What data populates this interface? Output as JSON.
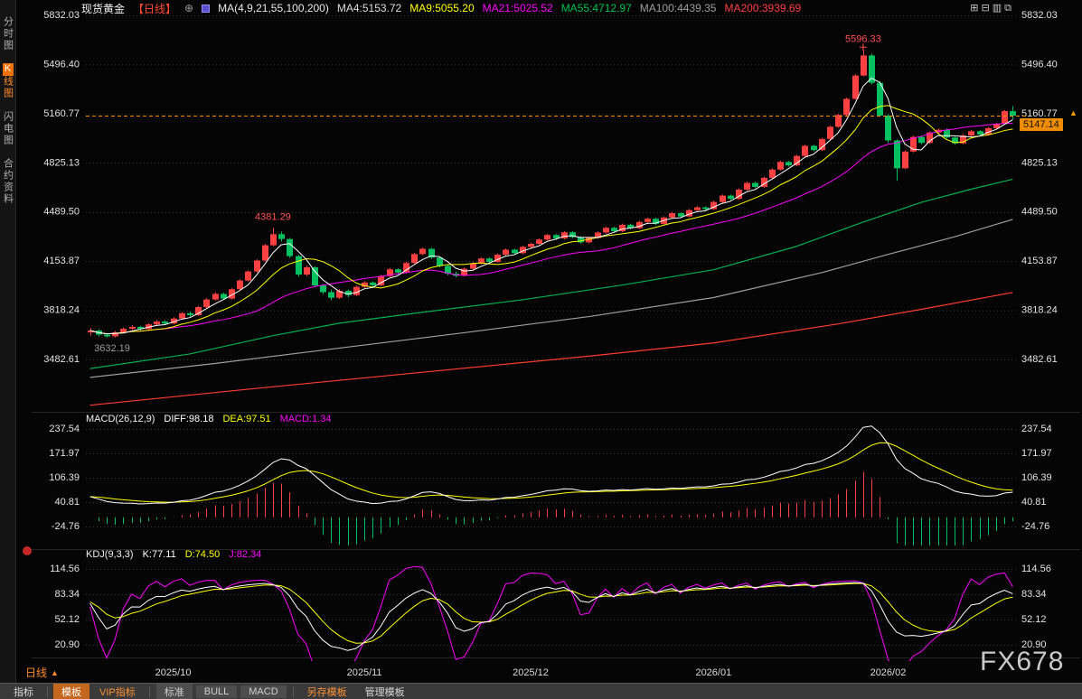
{
  "header": {
    "symbol": "现货黄金",
    "period_tag": "【日线】",
    "ma_settings": "MA(4,9,21,55,100,200)",
    "ma_values": [
      {
        "label": "MA4:5153.72",
        "color": "#dddddd"
      },
      {
        "label": "MA9:5055.20",
        "color": "#ffff00"
      },
      {
        "label": "MA21:5025.52",
        "color": "#ff00ff"
      },
      {
        "label": "MA55:4712.97",
        "color": "#00c050"
      },
      {
        "label": "MA100:4439.35",
        "color": "#9e9e9e"
      },
      {
        "label": "MA200:3939.69",
        "color": "#ff4040"
      }
    ],
    "window_icons": [
      {
        "name": "grid-layout-icon",
        "glyph": "⊞"
      },
      {
        "name": "split-horizontal-icon",
        "glyph": "⊟"
      },
      {
        "name": "rows-layout-icon",
        "glyph": "▥"
      },
      {
        "name": "overlap-windows-icon",
        "glyph": "⧉"
      }
    ]
  },
  "sidebar": {
    "items": [
      {
        "label": "分时图",
        "active": false
      },
      {
        "label": "K线图",
        "active": true
      },
      {
        "label": "闪电图",
        "active": false
      },
      {
        "label": "合约资料",
        "active": false
      }
    ]
  },
  "toolbar": {
    "items": [
      {
        "label": "指标"
      },
      {
        "label": "模板"
      },
      {
        "label": "VIP指标"
      },
      {
        "label": "标准"
      },
      {
        "label": "BULL"
      },
      {
        "label": "MACD"
      },
      {
        "label": "另存模板"
      },
      {
        "label": "管理模板"
      }
    ]
  },
  "overlays": {
    "current_price_label": "5147.14",
    "price_marker_glyph": "▲",
    "watermark": "FX678",
    "period_label": "日线",
    "period_arrow_glyph": "▲",
    "circle_plus_glyph": "⊕"
  },
  "chart_data": {
    "type": "candlestick",
    "title": "现货黄金 日线",
    "colors": {
      "up": "#ff4040",
      "down": "#00c060",
      "accent": "#ff9000"
    },
    "price_ticks": [
      "5832.03",
      "5496.40",
      "5160.77",
      "4825.13",
      "4489.50",
      "4153.87",
      "3818.24",
      "3482.61"
    ],
    "x_ticks": [
      {
        "label": "2025/10",
        "index": 10
      },
      {
        "label": "2025/11",
        "index": 33
      },
      {
        "label": "2025/12",
        "index": 53
      },
      {
        "label": "2026/01",
        "index": 75
      },
      {
        "label": "2026/02",
        "index": 96
      }
    ],
    "current_price": 5147.14,
    "annotations": [
      {
        "text": "5596.33",
        "index": 93,
        "anchor": "high",
        "color": "#ff5050",
        "marker": "cross"
      },
      {
        "text": "4381.29",
        "index": 22,
        "anchor": "high",
        "color": "#ff5050"
      },
      {
        "text": "3632.19",
        "index": 2,
        "anchor": "low",
        "color": "#9a9a9a"
      }
    ],
    "ma_computed": [
      {
        "name": "MA21",
        "window": 21,
        "color": "#ff00ff"
      },
      {
        "name": "MA9",
        "window": 9,
        "color": "#ffff00"
      },
      {
        "name": "MA4",
        "window": 4,
        "color": "#ffffff"
      }
    ],
    "ma_overlays": [
      {
        "name": "MA200",
        "color": "#ff3b30",
        "points": [
          [
            0,
            3170
          ],
          [
            20,
            3285
          ],
          [
            40,
            3395
          ],
          [
            60,
            3505
          ],
          [
            75,
            3595
          ],
          [
            90,
            3725
          ],
          [
            100,
            3825
          ],
          [
            111,
            3940
          ]
        ]
      },
      {
        "name": "MA100",
        "color": "#9e9e9e",
        "points": [
          [
            0,
            3360
          ],
          [
            15,
            3455
          ],
          [
            30,
            3560
          ],
          [
            45,
            3665
          ],
          [
            60,
            3775
          ],
          [
            75,
            3905
          ],
          [
            88,
            4075
          ],
          [
            96,
            4200
          ],
          [
            104,
            4320
          ],
          [
            111,
            4439
          ]
        ]
      },
      {
        "name": "MA55",
        "color": "#00b050",
        "points": [
          [
            0,
            3420
          ],
          [
            12,
            3520
          ],
          [
            22,
            3645
          ],
          [
            30,
            3730
          ],
          [
            40,
            3805
          ],
          [
            52,
            3890
          ],
          [
            64,
            3990
          ],
          [
            75,
            4095
          ],
          [
            85,
            4255
          ],
          [
            93,
            4420
          ],
          [
            100,
            4555
          ],
          [
            106,
            4645
          ],
          [
            111,
            4713
          ]
        ]
      }
    ],
    "macd": {
      "label": "MACD(26,12,9)",
      "diff_label": "DIFF:98.18",
      "dea_label": "DEA:97.51",
      "macd_label": "MACD:1.34",
      "ticks": [
        "237.54",
        "171.97",
        "106.39",
        "40.81",
        "-24.76"
      ],
      "colors": {
        "diff": "#ffffff",
        "dea": "#ffff00",
        "macd": "#ff00ff",
        "hist_pos": "#ff4040",
        "hist_neg": "#00c060"
      }
    },
    "kdj": {
      "label": "KDJ(9,3,3)",
      "k_label": "K:77.11",
      "d_label": "D:74.50",
      "j_label": "J:82.34",
      "ticks": [
        "114.56",
        "83.34",
        "52.12",
        "20.90"
      ],
      "colors": {
        "k": "#ffffff",
        "d": "#ffff00",
        "j": "#ff00ff"
      }
    },
    "candles": [
      [
        3668,
        3698,
        3645,
        3680
      ],
      [
        3680,
        3688,
        3640,
        3652
      ],
      [
        3652,
        3664,
        3632.19,
        3640
      ],
      [
        3640,
        3676,
        3633,
        3668
      ],
      [
        3668,
        3701,
        3660,
        3692
      ],
      [
        3692,
        3718,
        3684,
        3705
      ],
      [
        3705,
        3712,
        3678,
        3690
      ],
      [
        3690,
        3730,
        3685,
        3722
      ],
      [
        3722,
        3752,
        3714,
        3741
      ],
      [
        3741,
        3750,
        3718,
        3728
      ],
      [
        3728,
        3770,
        3722,
        3762
      ],
      [
        3762,
        3806,
        3755,
        3798
      ],
      [
        3798,
        3809,
        3774,
        3785
      ],
      [
        3785,
        3848,
        3780,
        3840
      ],
      [
        3840,
        3901,
        3834,
        3892
      ],
      [
        3892,
        3941,
        3885,
        3930
      ],
      [
        3930,
        3938,
        3889,
        3898
      ],
      [
        3898,
        3970,
        3892,
        3962
      ],
      [
        3962,
        4030,
        3955,
        4021
      ],
      [
        4021,
        4091,
        4015,
        4083
      ],
      [
        4083,
        4166,
        4076,
        4158
      ],
      [
        4158,
        4271,
        4152,
        4262
      ],
      [
        4262,
        4381.29,
        4255,
        4338
      ],
      [
        4338,
        4356,
        4288,
        4305
      ],
      [
        4305,
        4312,
        4176,
        4188
      ],
      [
        4188,
        4196,
        4048,
        4062
      ],
      [
        4062,
        4125,
        4052,
        4112
      ],
      [
        4112,
        4118,
        3975,
        3988
      ],
      [
        3988,
        3996,
        3928,
        3942
      ],
      [
        3942,
        3958,
        3886,
        3904
      ],
      [
        3904,
        3962,
        3896,
        3951
      ],
      [
        3951,
        3960,
        3908,
        3922
      ],
      [
        3922,
        3987,
        3915,
        3978
      ],
      [
        3978,
        4018,
        3970,
        4008
      ],
      [
        4008,
        4016,
        3978,
        3989
      ],
      [
        3989,
        4060,
        3982,
        4052
      ],
      [
        4052,
        4107,
        4045,
        4098
      ],
      [
        4098,
        4105,
        4062,
        4076
      ],
      [
        4076,
        4150,
        4070,
        4141
      ],
      [
        4141,
        4211,
        4135,
        4202
      ],
      [
        4202,
        4246,
        4195,
        4238
      ],
      [
        4238,
        4244,
        4168,
        4178
      ],
      [
        4178,
        4186,
        4110,
        4121
      ],
      [
        4121,
        4130,
        4058,
        4068
      ],
      [
        4068,
        4082,
        4043,
        4054
      ],
      [
        4054,
        4110,
        4048,
        4102
      ],
      [
        4102,
        4146,
        4096,
        4138
      ],
      [
        4138,
        4180,
        4131,
        4172
      ],
      [
        4172,
        4179,
        4140,
        4149
      ],
      [
        4149,
        4206,
        4143,
        4198
      ],
      [
        4198,
        4240,
        4192,
        4232
      ],
      [
        4232,
        4239,
        4199,
        4208
      ],
      [
        4208,
        4259,
        4202,
        4251
      ],
      [
        4251,
        4280,
        4244,
        4272
      ],
      [
        4272,
        4309,
        4266,
        4301
      ],
      [
        4301,
        4340,
        4295,
        4332
      ],
      [
        4332,
        4339,
        4300,
        4309
      ],
      [
        4309,
        4359,
        4303,
        4351
      ],
      [
        4351,
        4358,
        4310,
        4318
      ],
      [
        4318,
        4325,
        4273,
        4282
      ],
      [
        4282,
        4320,
        4276,
        4312
      ],
      [
        4312,
        4357,
        4306,
        4349
      ],
      [
        4349,
        4389,
        4343,
        4381
      ],
      [
        4381,
        4388,
        4349,
        4358
      ],
      [
        4358,
        4410,
        4352,
        4402
      ],
      [
        4402,
        4409,
        4371,
        4379
      ],
      [
        4379,
        4429,
        4373,
        4421
      ],
      [
        4421,
        4451,
        4415,
        4443
      ],
      [
        4443,
        4450,
        4399,
        4408
      ],
      [
        4408,
        4460,
        4402,
        4452
      ],
      [
        4452,
        4489,
        4446,
        4481
      ],
      [
        4481,
        4488,
        4450,
        4459
      ],
      [
        4459,
        4510,
        4453,
        4502
      ],
      [
        4502,
        4529,
        4496,
        4521
      ],
      [
        4521,
        4528,
        4500,
        4509
      ],
      [
        4509,
        4566,
        4503,
        4558
      ],
      [
        4558,
        4609,
        4552,
        4601
      ],
      [
        4601,
        4608,
        4570,
        4579
      ],
      [
        4579,
        4650,
        4573,
        4642
      ],
      [
        4642,
        4696,
        4636,
        4688
      ],
      [
        4688,
        4695,
        4652,
        4661
      ],
      [
        4661,
        4730,
        4655,
        4722
      ],
      [
        4722,
        4787,
        4716,
        4779
      ],
      [
        4779,
        4839,
        4773,
        4831
      ],
      [
        4831,
        4838,
        4799,
        4808
      ],
      [
        4808,
        4880,
        4802,
        4872
      ],
      [
        4872,
        4949,
        4866,
        4941
      ],
      [
        4941,
        4948,
        4903,
        4912
      ],
      [
        4912,
        4996,
        4906,
        4988
      ],
      [
        4988,
        5079,
        4982,
        5071
      ],
      [
        5071,
        5160,
        5065,
        5152
      ],
      [
        5152,
        5270,
        5146,
        5262
      ],
      [
        5262,
        5429,
        5256,
        5421
      ],
      [
        5421,
        5596.33,
        5415,
        5558
      ],
      [
        5558,
        5570,
        5360,
        5372
      ],
      [
        5372,
        5380,
        5138,
        5148
      ],
      [
        5148,
        5156,
        4962,
        4978
      ],
      [
        4978,
        4986,
        4702,
        4788
      ],
      [
        4788,
        4910,
        4782,
        4902
      ],
      [
        4902,
        5010,
        4896,
        5002
      ],
      [
        5002,
        5009,
        4952,
        4961
      ],
      [
        4961,
        5040,
        4955,
        5032
      ],
      [
        5032,
        5059,
        5026,
        5051
      ],
      [
        5051,
        5058,
        4989,
        4998
      ],
      [
        4998,
        5005,
        4949,
        4958
      ],
      [
        4958,
        5020,
        4952,
        5012
      ],
      [
        5012,
        5049,
        5006,
        5041
      ],
      [
        5041,
        5048,
        5009,
        5018
      ],
      [
        5018,
        5070,
        5012,
        5062
      ],
      [
        5062,
        5099,
        5056,
        5091
      ],
      [
        5091,
        5186,
        5085,
        5178
      ],
      [
        5178,
        5212,
        5122,
        5147.14
      ]
    ]
  }
}
